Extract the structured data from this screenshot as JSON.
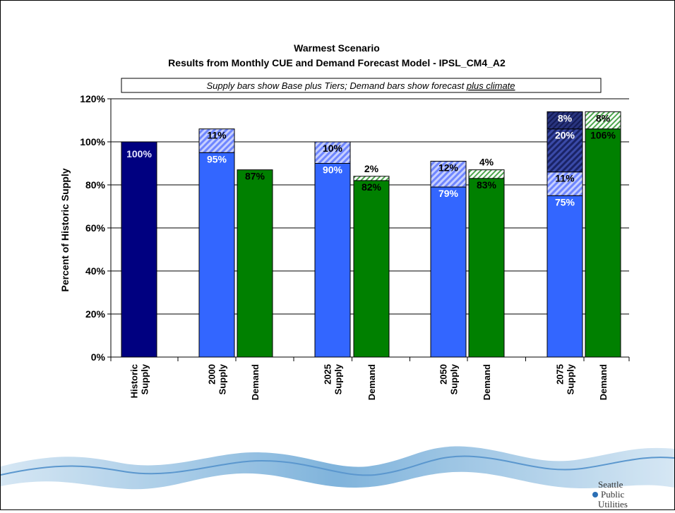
{
  "chart_data": {
    "type": "bar",
    "stacked": true,
    "title": "Warmest Scenario",
    "subtitle": "Results from Monthly CUE and Demand Forecast Model - IPSL_CM4_A2",
    "note": {
      "prefix": "Supply bars show Base plus Tiers; Demand bars show forecast ",
      "underlined": "plus climate"
    },
    "ylabel": "Percent of Historic Supply",
    "ylim": [
      0,
      120
    ],
    "yticks": [
      "0%",
      "20%",
      "40%",
      "60%",
      "80%",
      "100%",
      "120%"
    ],
    "grid": true,
    "bars": [
      {
        "label": [
          "Historic",
          "Supply"
        ],
        "segments": [
          {
            "value": 100,
            "label": "100%",
            "kind": "historic"
          }
        ]
      },
      {
        "label": [
          "2000",
          "Supply"
        ],
        "segments": [
          {
            "value": 95,
            "label": "95%",
            "kind": "supply-base"
          },
          {
            "value": 11,
            "label": "11%",
            "kind": "tier1"
          }
        ]
      },
      {
        "label": [
          "Demand"
        ],
        "segments": [
          {
            "value": 87,
            "label": "87%",
            "kind": "demand"
          }
        ]
      },
      {
        "label": [
          "2025",
          "Supply"
        ],
        "segments": [
          {
            "value": 90,
            "label": "90%",
            "kind": "supply-base"
          },
          {
            "value": 10,
            "label": "10%",
            "kind": "tier1"
          }
        ]
      },
      {
        "label": [
          "Demand"
        ],
        "segments": [
          {
            "value": 82,
            "label": "82%",
            "kind": "demand"
          },
          {
            "value": 2,
            "label": "2%",
            "kind": "climate",
            "labelAbove": true
          }
        ]
      },
      {
        "label": [
          "2050",
          "Supply"
        ],
        "segments": [
          {
            "value": 79,
            "label": "79%",
            "kind": "supply-base"
          },
          {
            "value": 12,
            "label": "12%",
            "kind": "tier1"
          }
        ]
      },
      {
        "label": [
          "Demand"
        ],
        "segments": [
          {
            "value": 83,
            "label": "83%",
            "kind": "demand"
          },
          {
            "value": 4,
            "label": "4%",
            "kind": "climate",
            "labelAbove": true
          }
        ]
      },
      {
        "label": [
          "2075",
          "Supply"
        ],
        "segments": [
          {
            "value": 75,
            "label": "75%",
            "kind": "supply-base"
          },
          {
            "value": 11,
            "label": "11%",
            "kind": "tier1"
          },
          {
            "value": 20,
            "label": "20%",
            "kind": "tier2"
          },
          {
            "value": 8,
            "label": "8%",
            "kind": "tier3"
          }
        ]
      },
      {
        "label": [
          "Demand"
        ],
        "segments": [
          {
            "value": 106,
            "label": "106%",
            "kind": "demand"
          },
          {
            "value": 8,
            "label": "8%",
            "kind": "climate"
          }
        ]
      }
    ],
    "colors": {
      "historic": "#000080",
      "supply-base": "#3366ff",
      "tier1": "#99aaff",
      "tier2": "#1f2a7a",
      "tier3": "#1f2a7a",
      "demand": "#008000",
      "climate": "#ccffcc"
    }
  },
  "logo": {
    "lines": [
      "Seattle",
      "Public",
      "Utilities"
    ]
  }
}
